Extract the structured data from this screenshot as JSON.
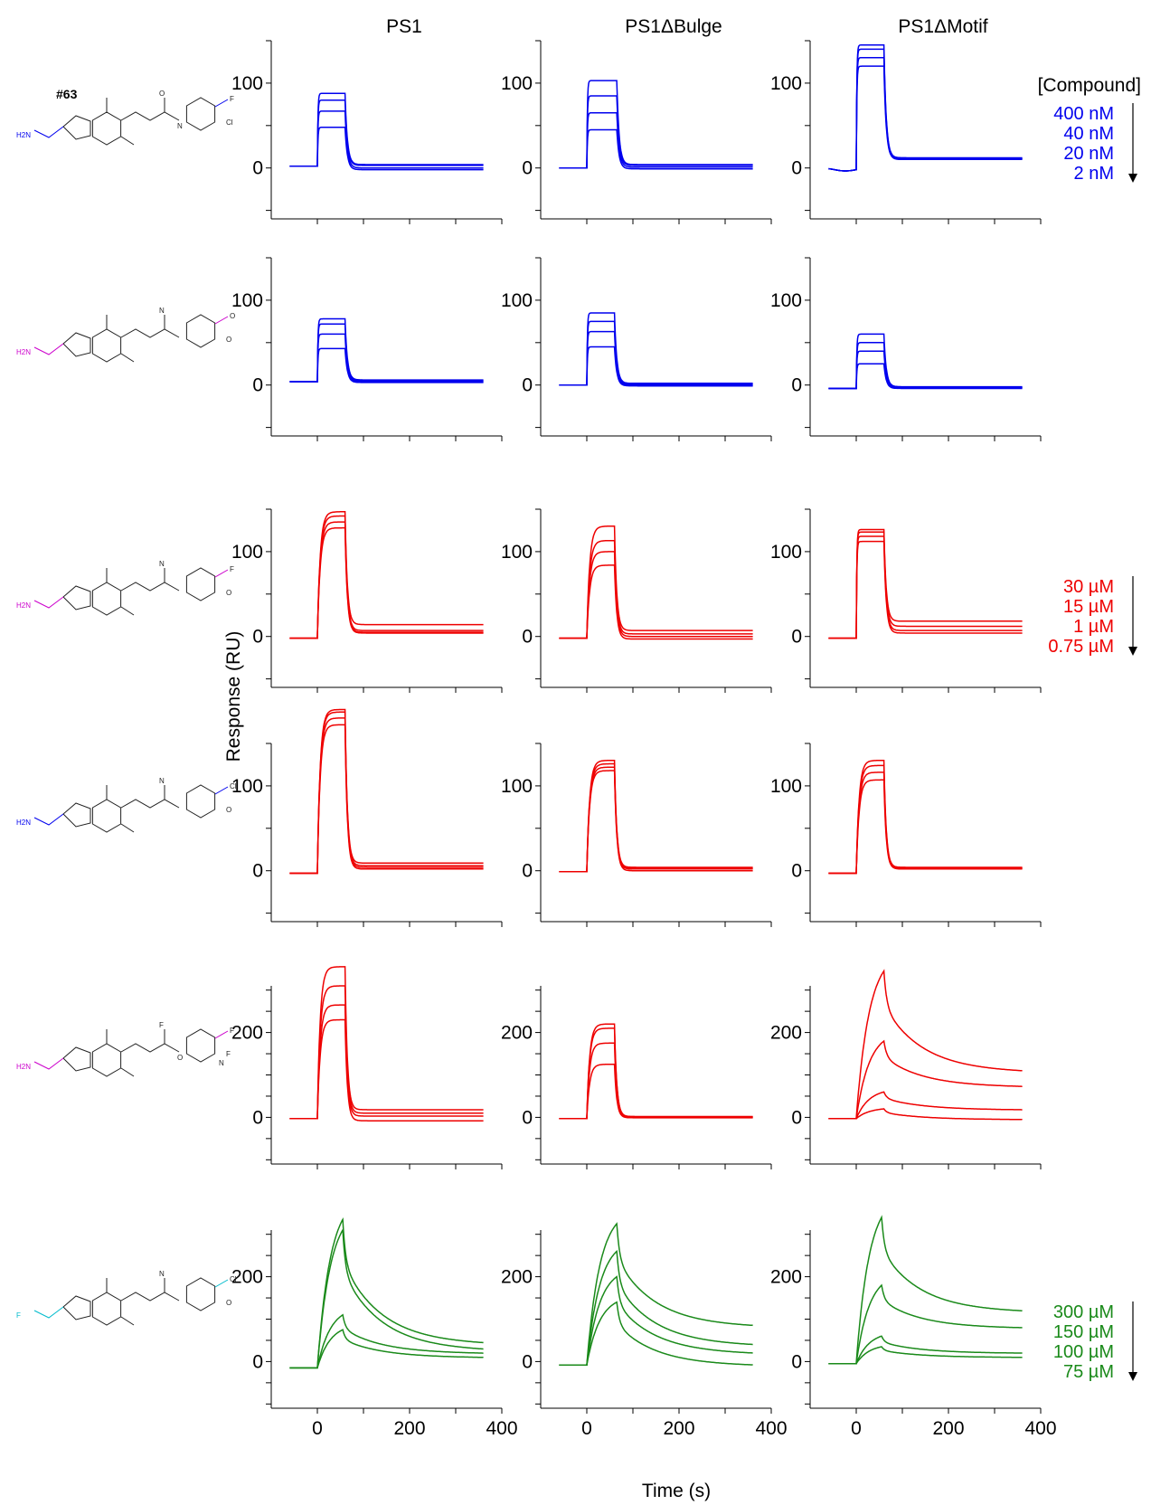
{
  "figure": {
    "compound_id": "#63",
    "column_titles": [
      "PS1",
      "PS1ΔBulge",
      "PS1ΔMotif"
    ],
    "ylabel": "Response (RU)",
    "xlabel": "Time (s)",
    "concentration_header": "[Compound]",
    "concentration_groups": [
      {
        "color": "#0000ee",
        "labels": [
          "400 nM",
          "40 nM",
          "20 nM",
          "2 nM"
        ]
      },
      {
        "color": "#ee0000",
        "labels": [
          "30 µM",
          "15 µM",
          "1 µM",
          "0.75 µM"
        ]
      },
      {
        "color": "#1a8a1a",
        "labels": [
          "300 µM",
          "150 µM",
          "100 µM",
          "75 µM"
        ]
      }
    ],
    "molecules": [
      {
        "labels": [
          "H2N",
          "F",
          "Cl",
          "O",
          "N"
        ],
        "substituent_color": "#0000ee"
      },
      {
        "labels": [
          "H2N",
          "O",
          "O",
          "N"
        ],
        "substituent_color": "#cc00cc"
      },
      {
        "labels": [
          "H2N",
          "F",
          "O",
          "N"
        ],
        "substituent_color": "#cc00cc"
      },
      {
        "labels": [
          "H2N",
          "Cl",
          "O",
          "N"
        ],
        "substituent_color": "#0000ee"
      },
      {
        "labels": [
          "H2N",
          "F",
          "F",
          "F",
          "O",
          "N"
        ],
        "substituent_color": "#cc00cc"
      },
      {
        "labels": [
          "F",
          "Cl",
          "O",
          "N"
        ],
        "substituent_color": "#00bbcc"
      }
    ]
  },
  "chart_data": [
    {
      "type": "line",
      "row": 1,
      "column": "PS1",
      "color": "#0000ee",
      "xlim": [
        -100,
        400
      ],
      "ylim": [
        -60,
        150
      ],
      "yticks": [
        0,
        100
      ],
      "xticks": [
        0,
        200,
        400
      ],
      "baseline": 2,
      "inject_end": 60,
      "plateau": [
        88,
        80,
        67,
        48
      ],
      "tail": [
        4,
        3,
        0,
        -2
      ],
      "rise": "fast",
      "decay": "fast"
    },
    {
      "type": "line",
      "row": 1,
      "column": "PS1ΔBulge",
      "color": "#0000ee",
      "xlim": [
        -100,
        400
      ],
      "ylim": [
        -60,
        150
      ],
      "yticks": [
        0,
        100
      ],
      "xticks": [
        0,
        200,
        400
      ],
      "baseline": 0,
      "inject_end": 65,
      "plateau": [
        103,
        85,
        65,
        45
      ],
      "tail": [
        4,
        3,
        1,
        -1
      ],
      "rise": "fast",
      "decay": "fast"
    },
    {
      "type": "line",
      "row": 1,
      "column": "PS1ΔMotif",
      "color": "#0000ee",
      "xlim": [
        -100,
        400
      ],
      "ylim": [
        -60,
        150
      ],
      "yticks": [
        0,
        100
      ],
      "xticks": [
        0,
        200,
        400
      ],
      "baseline": -2,
      "inject_end": 60,
      "plateau": [
        145,
        140,
        130,
        120
      ],
      "tail": [
        12,
        11,
        11,
        10
      ],
      "rise": "fast",
      "decay": "fast",
      "drift": true
    },
    {
      "type": "line",
      "row": 2,
      "column": "PS1",
      "color": "#0000ee",
      "xlim": [
        -100,
        400
      ],
      "ylim": [
        -60,
        150
      ],
      "yticks": [
        0,
        100
      ],
      "xticks": [
        0,
        200,
        400
      ],
      "baseline": 4,
      "inject_end": 60,
      "plateau": [
        78,
        72,
        60,
        43
      ],
      "tail": [
        6,
        5,
        4,
        3
      ],
      "rise": "fast",
      "decay": "fast"
    },
    {
      "type": "line",
      "row": 2,
      "column": "PS1ΔBulge",
      "color": "#0000ee",
      "xlim": [
        -100,
        400
      ],
      "ylim": [
        -60,
        150
      ],
      "yticks": [
        0,
        100
      ],
      "xticks": [
        0,
        200,
        400
      ],
      "baseline": 0,
      "inject_end": 60,
      "plateau": [
        85,
        75,
        63,
        45
      ],
      "tail": [
        2,
        1,
        0,
        -1
      ],
      "rise": "fast",
      "decay": "fast"
    },
    {
      "type": "line",
      "row": 2,
      "column": "PS1ΔMotif",
      "color": "#0000ee",
      "xlim": [
        -100,
        400
      ],
      "ylim": [
        -60,
        150
      ],
      "yticks": [
        0,
        100
      ],
      "xticks": [
        0,
        200,
        400
      ],
      "baseline": -4,
      "inject_end": 60,
      "plateau": [
        60,
        50,
        40,
        25
      ],
      "tail": [
        -2,
        -3,
        -3,
        -4
      ],
      "rise": "fast",
      "decay": "fast"
    },
    {
      "type": "line",
      "row": 3,
      "column": "PS1",
      "color": "#ee0000",
      "xlim": [
        -100,
        400
      ],
      "ylim": [
        -60,
        150
      ],
      "yticks": [
        0,
        100
      ],
      "xticks": [
        0,
        200,
        400
      ],
      "baseline": -2,
      "inject_end": 60,
      "plateau": [
        147,
        142,
        135,
        128
      ],
      "tail": [
        14,
        7,
        5,
        4
      ],
      "rise": "medium",
      "decay": "fast"
    },
    {
      "type": "line",
      "row": 3,
      "column": "PS1ΔBulge",
      "color": "#ee0000",
      "xlim": [
        -100,
        400
      ],
      "ylim": [
        -60,
        150
      ],
      "yticks": [
        0,
        100
      ],
      "xticks": [
        0,
        200,
        400
      ],
      "baseline": -2,
      "inject_end": 60,
      "plateau": [
        130,
        113,
        100,
        84
      ],
      "tail": [
        7,
        3,
        0,
        -3
      ],
      "rise": "medium",
      "decay": "fast"
    },
    {
      "type": "line",
      "row": 3,
      "column": "PS1ΔMotif",
      "color": "#ee0000",
      "xlim": [
        -100,
        400
      ],
      "ylim": [
        -60,
        150
      ],
      "yticks": [
        0,
        100
      ],
      "xticks": [
        0,
        200,
        400
      ],
      "baseline": -2,
      "inject_end": 60,
      "plateau": [
        126,
        123,
        118,
        112
      ],
      "tail": [
        18,
        12,
        7,
        4
      ],
      "rise": "fast",
      "decay": "fast"
    },
    {
      "type": "line",
      "row": 4,
      "column": "PS1",
      "color": "#ee0000",
      "xlim": [
        -100,
        400
      ],
      "ylim": [
        -60,
        150
      ],
      "yticks": [
        0,
        100
      ],
      "xticks": [
        0,
        200,
        400
      ],
      "baseline": -3,
      "inject_end": 60,
      "plateau": [
        190,
        187,
        180,
        172
      ],
      "tail": [
        9,
        6,
        4,
        2
      ],
      "rise": "medium",
      "decay": "fast"
    },
    {
      "type": "line",
      "row": 4,
      "column": "PS1ΔBulge",
      "color": "#ee0000",
      "xlim": [
        -100,
        400
      ],
      "ylim": [
        -60,
        150
      ],
      "yticks": [
        0,
        100
      ],
      "xticks": [
        0,
        200,
        400
      ],
      "baseline": -1,
      "inject_end": 60,
      "plateau": [
        130,
        126,
        122,
        118
      ],
      "tail": [
        4,
        3,
        2,
        0
      ],
      "rise": "medium",
      "decay": "fast"
    },
    {
      "type": "line",
      "row": 4,
      "column": "PS1ΔMotif",
      "color": "#ee0000",
      "xlim": [
        -100,
        400
      ],
      "ylim": [
        -60,
        150
      ],
      "yticks": [
        0,
        100
      ],
      "xticks": [
        0,
        200,
        400
      ],
      "baseline": -3,
      "inject_end": 60,
      "plateau": [
        130,
        124,
        116,
        107
      ],
      "tail": [
        4,
        3,
        3,
        2
      ],
      "rise": "medium",
      "decay": "fast"
    },
    {
      "type": "line",
      "row": 5,
      "column": "PS1",
      "color": "#ee0000",
      "xlim": [
        -100,
        400
      ],
      "ylim": [
        -110,
        310
      ],
      "yticks": [
        0,
        200
      ],
      "xticks": [
        0,
        200,
        400
      ],
      "baseline": -3,
      "inject_end": 60,
      "plateau": [
        355,
        310,
        265,
        230
      ],
      "tail": [
        18,
        10,
        3,
        -8
      ],
      "rise": "medium",
      "decay": "fast"
    },
    {
      "type": "line",
      "row": 5,
      "column": "PS1ΔBulge",
      "color": "#ee0000",
      "xlim": [
        -100,
        400
      ],
      "ylim": [
        -110,
        310
      ],
      "yticks": [
        0,
        200
      ],
      "xticks": [
        0,
        200,
        400
      ],
      "baseline": -3,
      "inject_end": 60,
      "plateau": [
        220,
        210,
        175,
        125
      ],
      "tail": [
        2,
        1,
        0,
        -1
      ],
      "rise": "medium",
      "decay": "fast"
    },
    {
      "type": "line",
      "row": 5,
      "column": "PS1ΔMotif",
      "color": "#ee0000",
      "xlim": [
        -100,
        400
      ],
      "ylim": [
        -110,
        310
      ],
      "yticks": [
        0,
        200
      ],
      "xticks": [
        0,
        200,
        400
      ],
      "baseline": -3,
      "inject_end": 60,
      "plateau": [
        345,
        180,
        60,
        20
      ],
      "tail": [
        110,
        73,
        18,
        -5
      ],
      "rise": "slow",
      "decay": "slow"
    },
    {
      "type": "line",
      "row": 6,
      "column": "PS1",
      "color": "#1a8a1a",
      "xlim": [
        -100,
        400
      ],
      "ylim": [
        -110,
        310
      ],
      "yticks": [
        0,
        200
      ],
      "xticks": [
        0,
        200,
        400
      ],
      "baseline": -15,
      "inject_end": 55,
      "plateau": [
        335,
        310,
        110,
        75
      ],
      "tail": [
        45,
        30,
        20,
        10
      ],
      "rise": "slow",
      "decay": "slow"
    },
    {
      "type": "line",
      "row": 6,
      "column": "PS1ΔBulge",
      "color": "#1a8a1a",
      "xlim": [
        -100,
        400
      ],
      "ylim": [
        -110,
        310
      ],
      "yticks": [
        0,
        200
      ],
      "xticks": [
        0,
        200,
        400
      ],
      "baseline": -8,
      "inject_end": 65,
      "plateau": [
        325,
        260,
        200,
        140
      ],
      "tail": [
        85,
        40,
        20,
        -8
      ],
      "rise": "slow",
      "decay": "slow"
    },
    {
      "type": "line",
      "row": 6,
      "column": "PS1ΔMotif",
      "color": "#1a8a1a",
      "xlim": [
        -100,
        400
      ],
      "ylim": [
        -110,
        310
      ],
      "yticks": [
        0,
        200
      ],
      "xticks": [
        0,
        200,
        400
      ],
      "baseline": -5,
      "inject_end": 55,
      "plateau": [
        340,
        180,
        60,
        35
      ],
      "tail": [
        120,
        80,
        20,
        10
      ],
      "rise": "slow",
      "decay": "slow"
    }
  ]
}
